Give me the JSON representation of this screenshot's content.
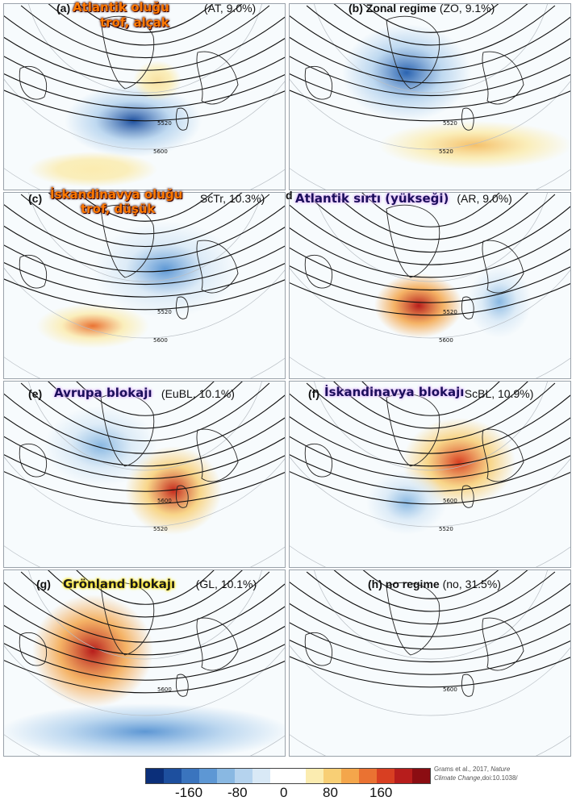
{
  "panels": [
    {
      "id": "a",
      "label": "(a)",
      "overlay1": "Atlantik oluğu",
      "overlay2": "trof, alçak",
      "regime_code": "(AT, 9.0%)",
      "contour1": "5520",
      "contour2": "5600"
    },
    {
      "id": "b",
      "label": "(b)",
      "regime_name": "Zonal regime",
      "regime_code": "(ZO, 9.1%)",
      "contour1": "5520",
      "contour2": "5520"
    },
    {
      "id": "c",
      "label": "(c)",
      "overlay1": "İskandinavya oluğu",
      "overlay2": "trof, düşük",
      "regime_code": "ScTr, 10.3%)",
      "contour1": "5520",
      "contour2": "5600"
    },
    {
      "id": "d",
      "label": "d",
      "overlay1": "Atlantik sırtı (yükseği)",
      "regime_code": "(AR, 9.0%)",
      "contour1": "5520",
      "contour2": "5600"
    },
    {
      "id": "e",
      "label": "(e)",
      "overlay1": "Avrupa blokajı",
      "regime_code": "(EuBL, 10.1%)",
      "contour1": "5600",
      "contour2": "5520"
    },
    {
      "id": "f",
      "label": "(f)",
      "overlay1": "İskandinavya blokajı",
      "regime_code": "ScBL, 10.9%)",
      "contour1": "5600",
      "contour2": "5520"
    },
    {
      "id": "g",
      "label": "(g)",
      "overlay1": "Grönland blokajı",
      "regime_code": "(GL, 10.1%)",
      "contour1": "5600"
    },
    {
      "id": "h",
      "label": "(h)",
      "regime_name": "no regime",
      "regime_code": "(no, 31.5%)",
      "contour1": "5600"
    }
  ],
  "colorbar": {
    "ticks": [
      "-160",
      "-80",
      "0",
      "80",
      "160"
    ],
    "colors": [
      "#0b2f7a",
      "#1d4f9e",
      "#3a74be",
      "#5d97d4",
      "#89b8e2",
      "#b5d3ee",
      "#d9e9f6",
      "#ffffff",
      "#ffffff",
      "#fbecb0",
      "#f8cf75",
      "#f4a64b",
      "#ea7232",
      "#d83f22",
      "#b71d1c",
      "#8b0d12"
    ]
  },
  "credit": {
    "line1_a": "Grams et al., 2017, ",
    "line1_b": "Nature",
    "line2_a": "Climate Change",
    "line2_b": ",doi:10.1038/"
  }
}
